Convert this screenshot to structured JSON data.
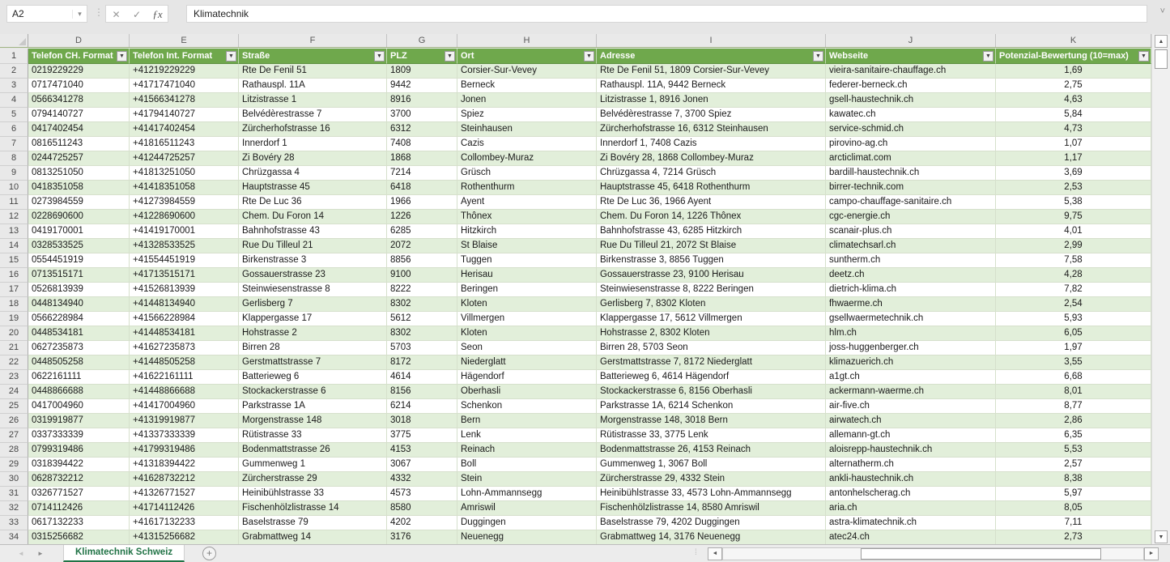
{
  "formula_bar": {
    "name_box": "A2",
    "formula": "Klimatechnik"
  },
  "icons": {
    "name_box_dropdown": "▾",
    "separator_dots": "⋮",
    "cancel": "✕",
    "enter": "✓",
    "fx": "ƒx",
    "expand_formula_bar": "˅",
    "filter": "▼",
    "scroll_up": "▲",
    "scroll_down": "▼",
    "scroll_left": "◄",
    "scroll_right": "►",
    "sheet_nav_left": "◄",
    "sheet_nav_right": "►",
    "add_sheet": "+",
    "grip_dots": "⁞"
  },
  "colors": {
    "header_green": "#6FA84C",
    "band_green": "#E2EFDA",
    "tab_green": "#217346"
  },
  "table": {
    "column_letters": [
      "D",
      "E",
      "F",
      "G",
      "H",
      "I",
      "J",
      "K"
    ],
    "header_row_number": "1",
    "headers": [
      "Telefon CH. Format",
      "Telefon Int. Format",
      "Straße",
      "PLZ",
      "Ort",
      "Adresse",
      "Webseite",
      "Potenzial-Bewertung (10=max)"
    ],
    "rows": [
      {
        "n": "2",
        "cells": [
          "0219229229",
          "+41219229229",
          "Rte De Fenil 51",
          "1809",
          "Corsier-Sur-Vevey",
          "Rte De Fenil 51, 1809 Corsier-Sur-Vevey",
          "vieira-sanitaire-chauffage.ch",
          "1,69"
        ]
      },
      {
        "n": "3",
        "cells": [
          "0717471040",
          "+41717471040",
          "Rathauspl. 11A",
          "9442",
          "Berneck",
          "Rathauspl. 11A, 9442 Berneck",
          "federer-berneck.ch",
          "2,75"
        ]
      },
      {
        "n": "4",
        "cells": [
          "0566341278",
          "+41566341278",
          "Litzistrasse 1",
          "8916",
          "Jonen",
          "Litzistrasse 1, 8916 Jonen",
          "gsell-haustechnik.ch",
          "4,63"
        ]
      },
      {
        "n": "5",
        "cells": [
          "0794140727",
          "+41794140727",
          "Belvédèrestrasse 7",
          "3700",
          "Spiez",
          "Belvédèrestrasse 7, 3700 Spiez",
          "kawatec.ch",
          "5,84"
        ]
      },
      {
        "n": "6",
        "cells": [
          "0417402454",
          "+41417402454",
          "Zürcherhofstrasse 16",
          "6312",
          "Steinhausen",
          "Zürcherhofstrasse 16, 6312 Steinhausen",
          "service-schmid.ch",
          "4,73"
        ]
      },
      {
        "n": "7",
        "cells": [
          "0816511243",
          "+41816511243",
          "Innerdorf 1",
          "7408",
          "Cazis",
          "Innerdorf 1, 7408 Cazis",
          "pirovino-ag.ch",
          "1,07"
        ]
      },
      {
        "n": "8",
        "cells": [
          "0244725257",
          "+41244725257",
          "Zi Bovéry 28",
          "1868",
          "Collombey-Muraz",
          "Zi Bovéry 28, 1868 Collombey-Muraz",
          "arcticlimat.com",
          "1,17"
        ]
      },
      {
        "n": "9",
        "cells": [
          "0813251050",
          "+41813251050",
          "Chrüzgassa 4",
          "7214",
          "Grüsch",
          "Chrüzgassa 4, 7214 Grüsch",
          "bardill-haustechnik.ch",
          "3,69"
        ]
      },
      {
        "n": "10",
        "cells": [
          "0418351058",
          "+41418351058",
          "Hauptstrasse 45",
          "6418",
          "Rothenthurm",
          "Hauptstrasse 45, 6418 Rothenthurm",
          "birrer-technik.com",
          "2,53"
        ]
      },
      {
        "n": "11",
        "cells": [
          "0273984559",
          "+41273984559",
          "Rte De Luc 36",
          "1966",
          "Ayent",
          "Rte De Luc 36, 1966 Ayent",
          "campo-chauffage-sanitaire.ch",
          "5,38"
        ]
      },
      {
        "n": "12",
        "cells": [
          "0228690600",
          "+41228690600",
          "Chem. Du Foron 14",
          "1226",
          "Thônex",
          "Chem. Du Foron 14, 1226 Thônex",
          "cgc-energie.ch",
          "9,75"
        ]
      },
      {
        "n": "13",
        "cells": [
          "0419170001",
          "+41419170001",
          "Bahnhofstrasse 43",
          "6285",
          "Hitzkirch",
          "Bahnhofstrasse 43, 6285 Hitzkirch",
          "scanair-plus.ch",
          "4,01"
        ]
      },
      {
        "n": "14",
        "cells": [
          "0328533525",
          "+41328533525",
          "Rue Du Tilleul 21",
          "2072",
          "St Blaise",
          "Rue Du Tilleul 21, 2072 St Blaise",
          "climatechsarl.ch",
          "2,99"
        ]
      },
      {
        "n": "15",
        "cells": [
          "0554451919",
          "+41554451919",
          "Birkenstrasse 3",
          "8856",
          "Tuggen",
          "Birkenstrasse 3, 8856 Tuggen",
          "suntherm.ch",
          "7,58"
        ]
      },
      {
        "n": "16",
        "cells": [
          "0713515171",
          "+41713515171",
          "Gossauerstrasse 23",
          "9100",
          "Herisau",
          "Gossauerstrasse 23, 9100 Herisau",
          "deetz.ch",
          "4,28"
        ]
      },
      {
        "n": "17",
        "cells": [
          "0526813939",
          "+41526813939",
          "Steinwiesenstrasse 8",
          "8222",
          "Beringen",
          "Steinwiesenstrasse 8, 8222 Beringen",
          "dietrich-klima.ch",
          "7,82"
        ]
      },
      {
        "n": "18",
        "cells": [
          "0448134940",
          "+41448134940",
          "Gerlisberg 7",
          "8302",
          "Kloten",
          "Gerlisberg 7, 8302 Kloten",
          "fhwaerme.ch",
          "2,54"
        ]
      },
      {
        "n": "19",
        "cells": [
          "0566228984",
          "+41566228984",
          "Klappergasse 17",
          "5612",
          "Villmergen",
          "Klappergasse 17, 5612 Villmergen",
          "gsellwaermetechnik.ch",
          "5,93"
        ]
      },
      {
        "n": "20",
        "cells": [
          "0448534181",
          "+41448534181",
          "Hohstrasse 2",
          "8302",
          "Kloten",
          "Hohstrasse 2, 8302 Kloten",
          "hlm.ch",
          "6,05"
        ]
      },
      {
        "n": "21",
        "cells": [
          "0627235873",
          "+41627235873",
          "Birren 28",
          "5703",
          "Seon",
          "Birren 28, 5703 Seon",
          "joss-huggenberger.ch",
          "1,97"
        ]
      },
      {
        "n": "22",
        "cells": [
          "0448505258",
          "+41448505258",
          "Gerstmattstrasse 7",
          "8172",
          "Niederglatt",
          "Gerstmattstrasse 7, 8172 Niederglatt",
          "klimazuerich.ch",
          "3,55"
        ]
      },
      {
        "n": "23",
        "cells": [
          "0622161111",
          "+41622161111",
          "Batterieweg 6",
          "4614",
          "Hägendorf",
          "Batterieweg 6, 4614 Hägendorf",
          "a1gt.ch",
          "6,68"
        ]
      },
      {
        "n": "24",
        "cells": [
          "0448866688",
          "+41448866688",
          "Stockackerstrasse 6",
          "8156",
          "Oberhasli",
          "Stockackerstrasse 6, 8156 Oberhasli",
          "ackermann-waerme.ch",
          "8,01"
        ]
      },
      {
        "n": "25",
        "cells": [
          "0417004960",
          "+41417004960",
          "Parkstrasse 1A",
          "6214",
          "Schenkon",
          "Parkstrasse 1A, 6214 Schenkon",
          "air-five.ch",
          "8,77"
        ]
      },
      {
        "n": "26",
        "cells": [
          "0319919877",
          "+41319919877",
          "Morgenstrasse 148",
          "3018",
          "Bern",
          "Morgenstrasse 148, 3018 Bern",
          "airwatech.ch",
          "2,86"
        ]
      },
      {
        "n": "27",
        "cells": [
          "0337333339",
          "+41337333339",
          "Rütistrasse 33",
          "3775",
          "Lenk",
          "Rütistrasse 33, 3775 Lenk",
          "allemann-gt.ch",
          "6,35"
        ]
      },
      {
        "n": "28",
        "cells": [
          "0799319486",
          "+41799319486",
          "Bodenmattstrasse 26",
          "4153",
          "Reinach",
          "Bodenmattstrasse 26, 4153 Reinach",
          "aloisrepp-haustechnik.ch",
          "5,53"
        ]
      },
      {
        "n": "29",
        "cells": [
          "0318394422",
          "+41318394422",
          "Gummenweg 1",
          "3067",
          "Boll",
          "Gummenweg 1, 3067 Boll",
          "alternatherm.ch",
          "2,57"
        ]
      },
      {
        "n": "30",
        "cells": [
          "0628732212",
          "+41628732212",
          "Zürcherstrasse 29",
          "4332",
          "Stein",
          "Zürcherstrasse 29, 4332 Stein",
          "ankli-haustechnik.ch",
          "8,38"
        ]
      },
      {
        "n": "31",
        "cells": [
          "0326771527",
          "+41326771527",
          "Heinibühlstrasse 33",
          "4573",
          "Lohn-Ammannsegg",
          "Heinibühlstrasse 33, 4573 Lohn-Ammannsegg",
          "antonhelscherag.ch",
          "5,97"
        ]
      },
      {
        "n": "32",
        "cells": [
          "0714112426",
          "+41714112426",
          "Fischenhölzlistrasse 14",
          "8580",
          "Amriswil",
          "Fischenhölzlistrasse 14, 8580 Amriswil",
          "aria.ch",
          "8,05"
        ]
      },
      {
        "n": "33",
        "cells": [
          "0617132233",
          "+41617132233",
          "Baselstrasse 79",
          "4202",
          "Duggingen",
          "Baselstrasse 79, 4202 Duggingen",
          "astra-klimatechnik.ch",
          "7,11"
        ]
      },
      {
        "n": "34",
        "cells": [
          "0315256682",
          "+41315256682",
          "Grabmattweg 14",
          "3176",
          "Neuenegg",
          "Grabmattweg 14, 3176 Neuenegg",
          "atec24.ch",
          "2,73"
        ]
      }
    ]
  },
  "sheet_bar": {
    "tab": "Klimatechnik Schweiz"
  }
}
